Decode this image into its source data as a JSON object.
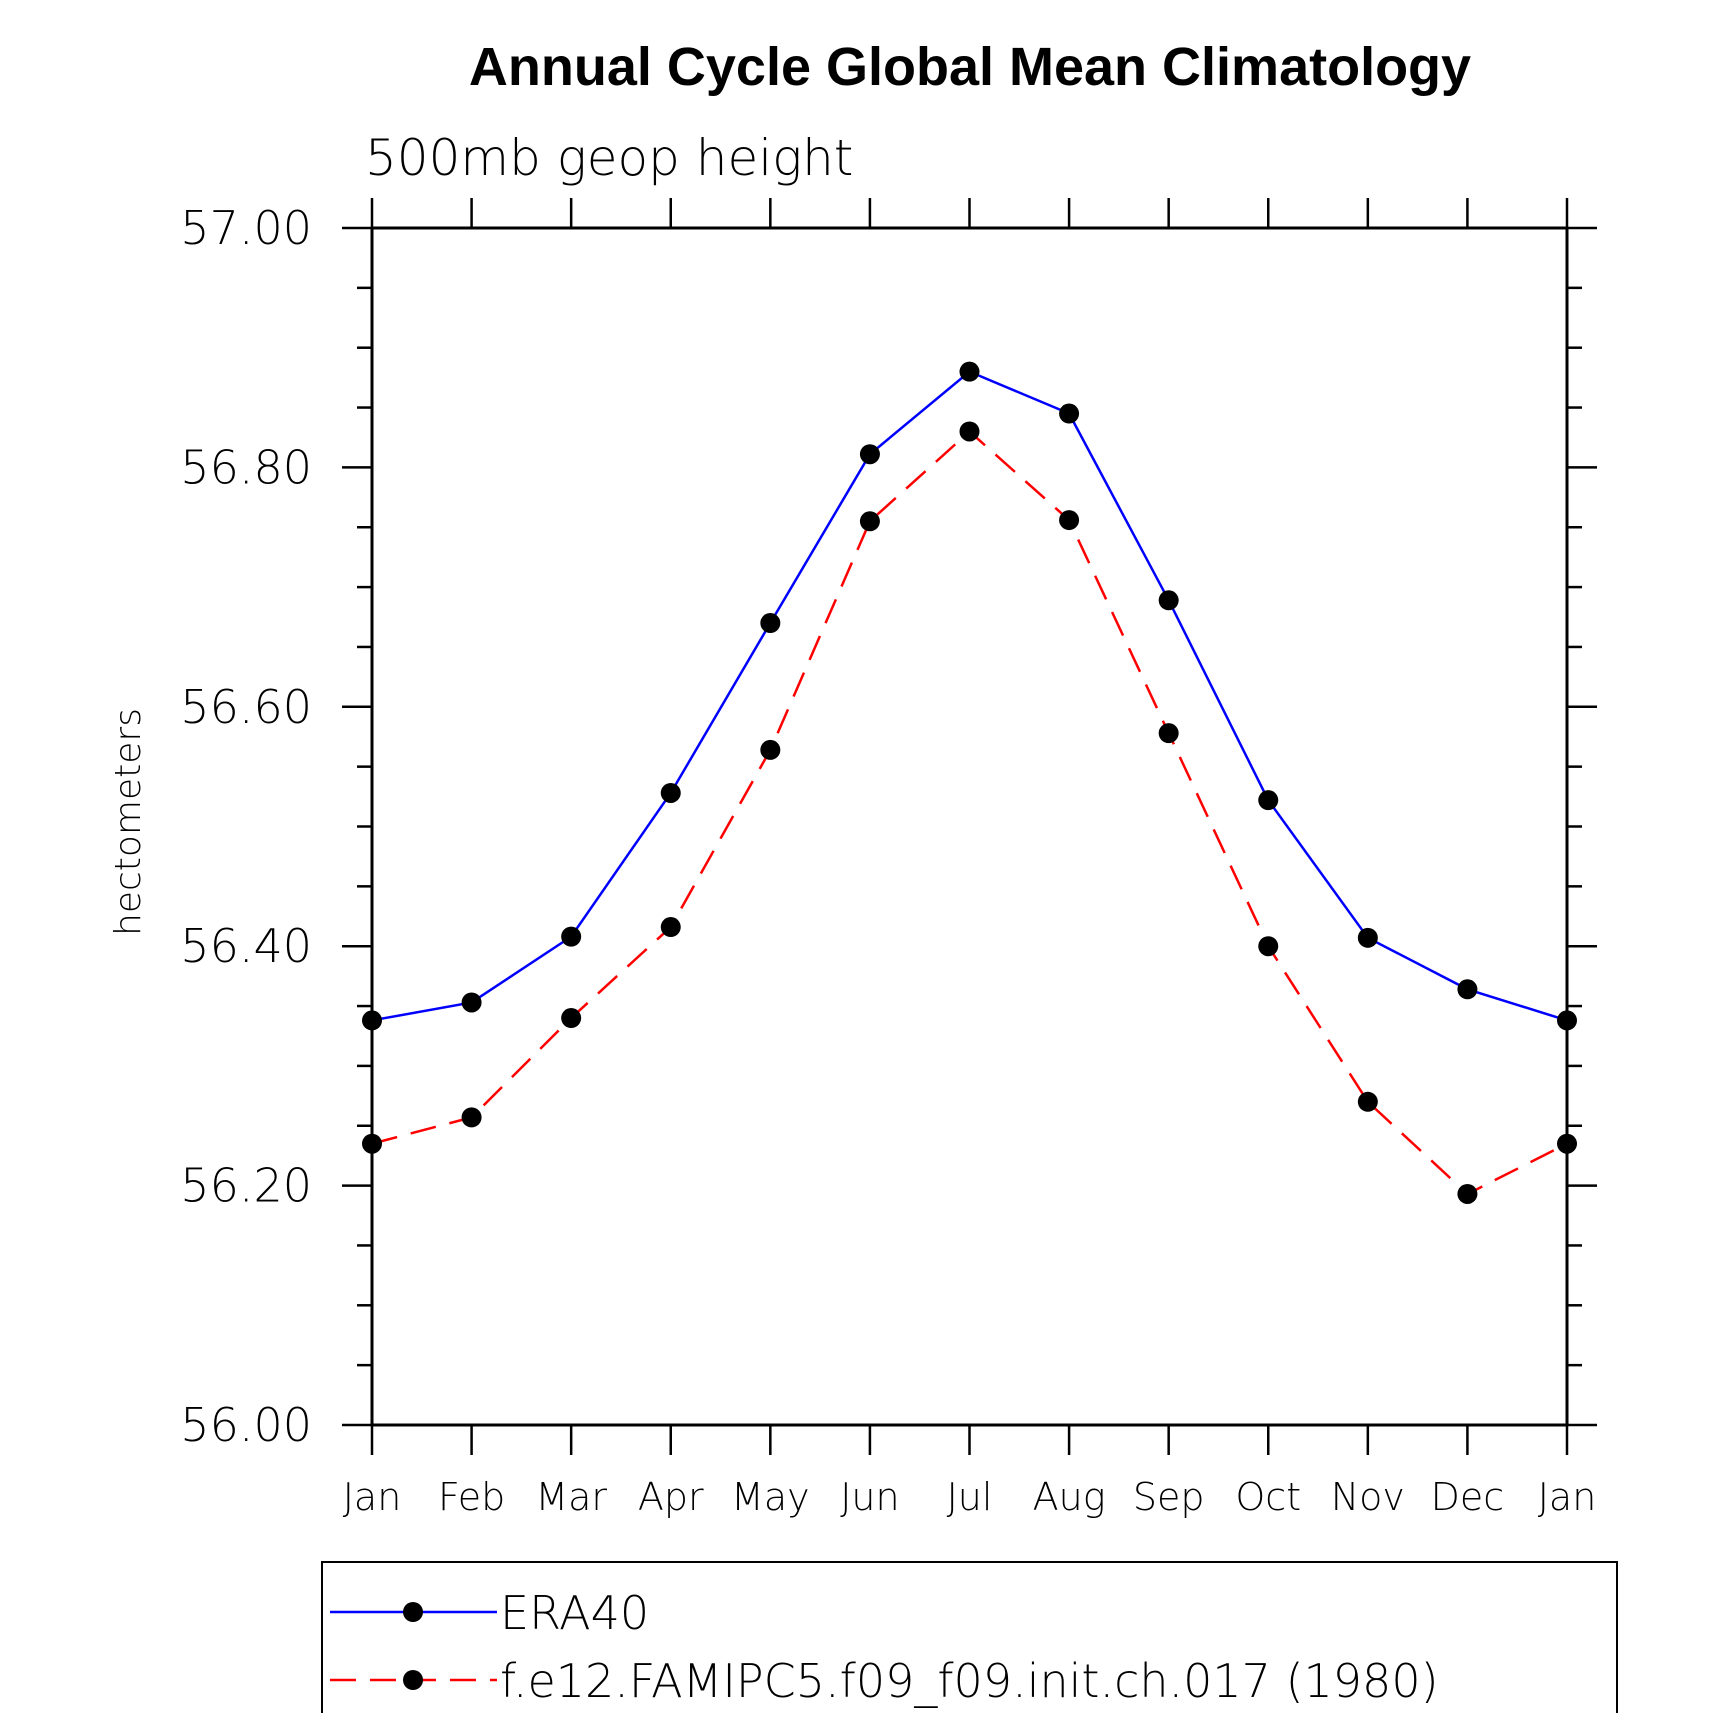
{
  "chart_data": {
    "type": "line",
    "title": "Annual Cycle Global Mean Climatology",
    "subtitle": "500mb geop height",
    "xlabel": "",
    "ylabel": "hectometers",
    "categories": [
      "Jan",
      "Feb",
      "Mar",
      "Apr",
      "May",
      "Jun",
      "Jul",
      "Aug",
      "Sep",
      "Oct",
      "Nov",
      "Dec",
      "Jan"
    ],
    "ylim": [
      56.0,
      57.0
    ],
    "yticks": [
      "56.00",
      "56.20",
      "56.40",
      "56.60",
      "56.80",
      "57.00"
    ],
    "grid": false,
    "legend_position": "bottom",
    "series": [
      {
        "name": "ERA40",
        "color": "#0000ff",
        "dash": "solid",
        "marker": "filled-circle",
        "values": [
          56.338,
          56.353,
          56.408,
          56.528,
          56.67,
          56.811,
          56.88,
          56.845,
          56.689,
          56.522,
          56.407,
          56.364,
          56.338
        ]
      },
      {
        "name": "f.e12.FAMIPC5.f09_f09.init.ch.017 (1980)",
        "color": "#ff0000",
        "dash": "dashed",
        "marker": "filled-circle",
        "values": [
          56.235,
          56.257,
          56.34,
          56.416,
          56.564,
          56.755,
          56.83,
          56.756,
          56.578,
          56.4,
          56.27,
          56.193,
          56.235
        ]
      }
    ]
  }
}
